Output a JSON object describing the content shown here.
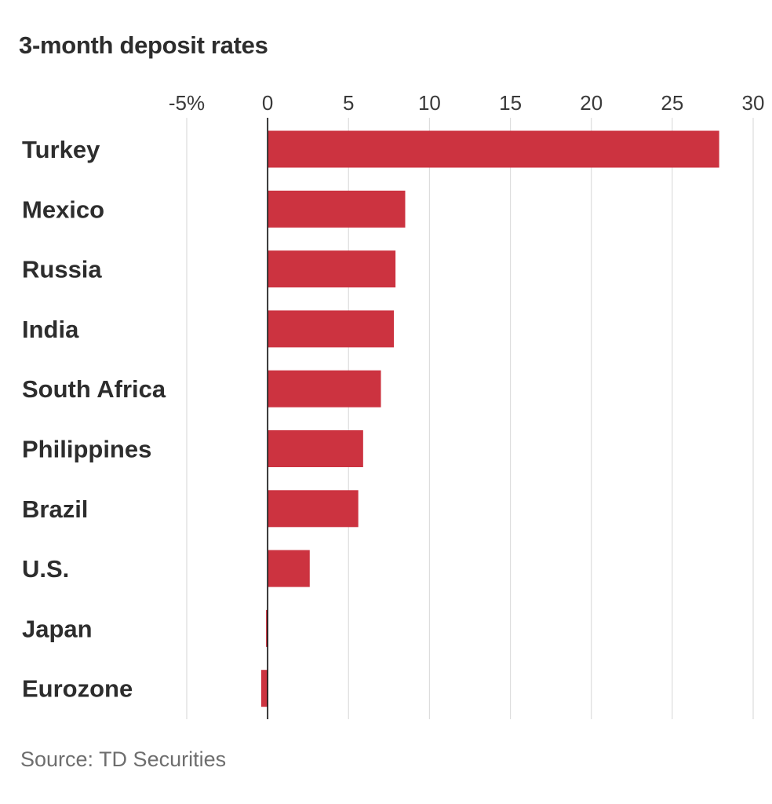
{
  "chart_data": {
    "type": "bar",
    "orientation": "horizontal",
    "title": "3-month deposit rates",
    "source": "Source: TD Securities",
    "xlim": [
      -5,
      30
    ],
    "ticks": [
      -5,
      0,
      5,
      10,
      15,
      20,
      25,
      30
    ],
    "tick_labels": [
      "-5%",
      "0",
      "5",
      "10",
      "15",
      "20",
      "25",
      "30"
    ],
    "gridlines": true,
    "legend": "none",
    "bar_color": "#cc3340",
    "categories": [
      "Turkey",
      "Mexico",
      "Russia",
      "India",
      "South Africa",
      "Philippines",
      "Brazil",
      "U.S.",
      "Japan",
      "Eurozone"
    ],
    "values": [
      27.9,
      8.5,
      7.9,
      7.8,
      7.0,
      5.9,
      5.6,
      2.6,
      -0.1,
      -0.4
    ]
  }
}
